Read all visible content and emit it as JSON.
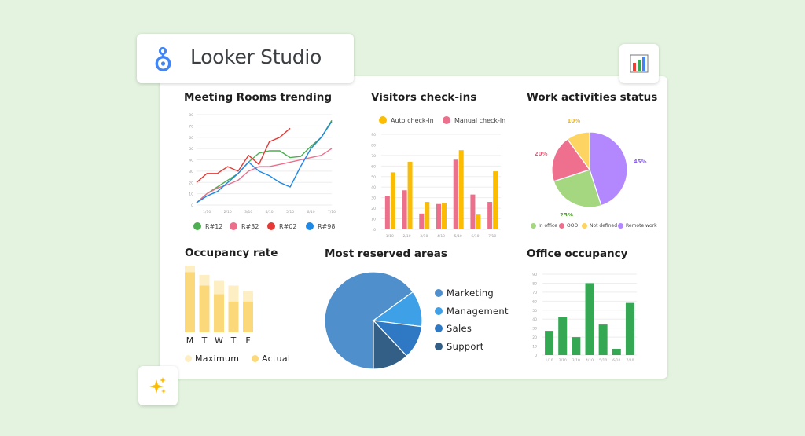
{
  "app": {
    "name": "Looker Studio",
    "colors": {
      "background": "#e3f3df",
      "logo_blue": "#4285f4"
    }
  },
  "icons": {
    "brand": "looker-studio-logo",
    "report_badge": "bar-chart-icon",
    "ai_badge": "sparkles-icon"
  },
  "charts": {
    "meeting_rooms": {
      "title": "Meeting Rooms trending"
    },
    "visitors": {
      "title": "Visitors check-ins"
    },
    "work_activities": {
      "title": "Work activities status"
    },
    "occupancy_rate": {
      "title": "Occupancy rate"
    },
    "reserved_areas": {
      "title": "Most reserved areas"
    },
    "office_occupancy": {
      "title": "Office occupancy"
    }
  },
  "chart_data": [
    {
      "type": "line",
      "title": "Meeting Rooms trending",
      "ylim": [
        0,
        80
      ],
      "yticks": [
        "0",
        "10",
        "20",
        "30",
        "40",
        "50",
        "60",
        "70",
        "80"
      ],
      "x_tick_labels": [
        "1/10",
        "2/10",
        "3/10",
        "4/10",
        "5/10",
        "6/10",
        "7/10"
      ],
      "x": [
        0,
        0.5,
        1,
        1.5,
        2,
        2.5,
        3,
        3.5,
        4,
        4.5,
        5,
        5.5,
        6,
        6.5
      ],
      "series": [
        {
          "name": "R#12",
          "color": "#4caf50",
          "values": [
            2,
            10,
            16,
            22,
            28,
            38,
            46,
            48,
            48,
            42,
            43,
            52,
            60,
            75
          ]
        },
        {
          "name": "R#32",
          "color": "#ec6f8c",
          "values": [
            2,
            10,
            15,
            18,
            22,
            30,
            34,
            34,
            36,
            38,
            40,
            42,
            44,
            50
          ]
        },
        {
          "name": "R#02",
          "color": "#e53935",
          "values": [
            20,
            28,
            28,
            34,
            30,
            44,
            36,
            56,
            60,
            68,
            null,
            null,
            null,
            null
          ]
        },
        {
          "name": "R#98",
          "color": "#1e88e5",
          "values": [
            2,
            8,
            12,
            20,
            28,
            38,
            30,
            26,
            20,
            16,
            34,
            50,
            60,
            74
          ]
        }
      ]
    },
    {
      "type": "bar",
      "title": "Visitors check-ins",
      "ylim": [
        0,
        90
      ],
      "yticks": [
        "0",
        "10",
        "20",
        "30",
        "40",
        "50",
        "60",
        "70",
        "80",
        "90"
      ],
      "categories": [
        "1/10",
        "2/10",
        "3/10",
        "4/10",
        "5/10",
        "6/10",
        "7/10"
      ],
      "series": [
        {
          "name": "Manual check-in",
          "color": "#ec6f8c",
          "values": [
            32,
            37,
            15,
            24,
            66,
            33,
            26
          ]
        },
        {
          "name": "Auto check-in",
          "color": "#fbbc04",
          "values": [
            54,
            64,
            26,
            25,
            75,
            14,
            55
          ]
        }
      ]
    },
    {
      "type": "pie",
      "title": "Work activities status",
      "slices": [
        {
          "name": "Remote work",
          "value": 45,
          "color": "#b388ff",
          "label": "45%",
          "label_color": "#8e5cf5"
        },
        {
          "name": "In office",
          "value": 25,
          "color": "#a5d780",
          "label": "25%",
          "label_color": "#56a43a"
        },
        {
          "name": "OOO",
          "value": 20,
          "color": "#ef6f8e",
          "label": "20%",
          "label_color": "#ec5a7a"
        },
        {
          "name": "Not defined",
          "value": 10,
          "color": "#fdd462",
          "label": "10%",
          "label_color": "#f2b705"
        }
      ]
    },
    {
      "type": "bar",
      "title": "Occupancy rate",
      "categories": [
        "M",
        "T",
        "W",
        "T",
        "F"
      ],
      "series": [
        {
          "name": "Maximum",
          "color": "#fdeec4",
          "values": [
            100,
            86,
            77,
            70,
            62
          ]
        },
        {
          "name": "Actual",
          "color": "#fbd97a",
          "values": [
            90,
            70,
            57,
            46,
            46
          ]
        }
      ]
    },
    {
      "type": "pie",
      "title": "Most reserved areas",
      "slices": [
        {
          "name": "Marketing",
          "value": 65,
          "color": "#4e8fcc"
        },
        {
          "name": "Management",
          "value": 12,
          "color": "#3ea1e8"
        },
        {
          "name": "Sales",
          "value": 11,
          "color": "#2f78c4"
        },
        {
          "name": "Support",
          "value": 12,
          "color": "#335f86"
        }
      ]
    },
    {
      "type": "bar",
      "title": "Office occupancy",
      "ylim": [
        0,
        90
      ],
      "yticks": [
        "0",
        "10",
        "20",
        "30",
        "40",
        "50",
        "60",
        "70",
        "80",
        "90"
      ],
      "categories": [
        "1/10",
        "2/10",
        "3/10",
        "4/10",
        "5/10",
        "6/10",
        "7/10"
      ],
      "series": [
        {
          "name": "Occupancy",
          "color": "#34a853",
          "values": [
            27,
            42,
            20,
            80,
            34,
            7,
            58
          ]
        }
      ]
    }
  ]
}
